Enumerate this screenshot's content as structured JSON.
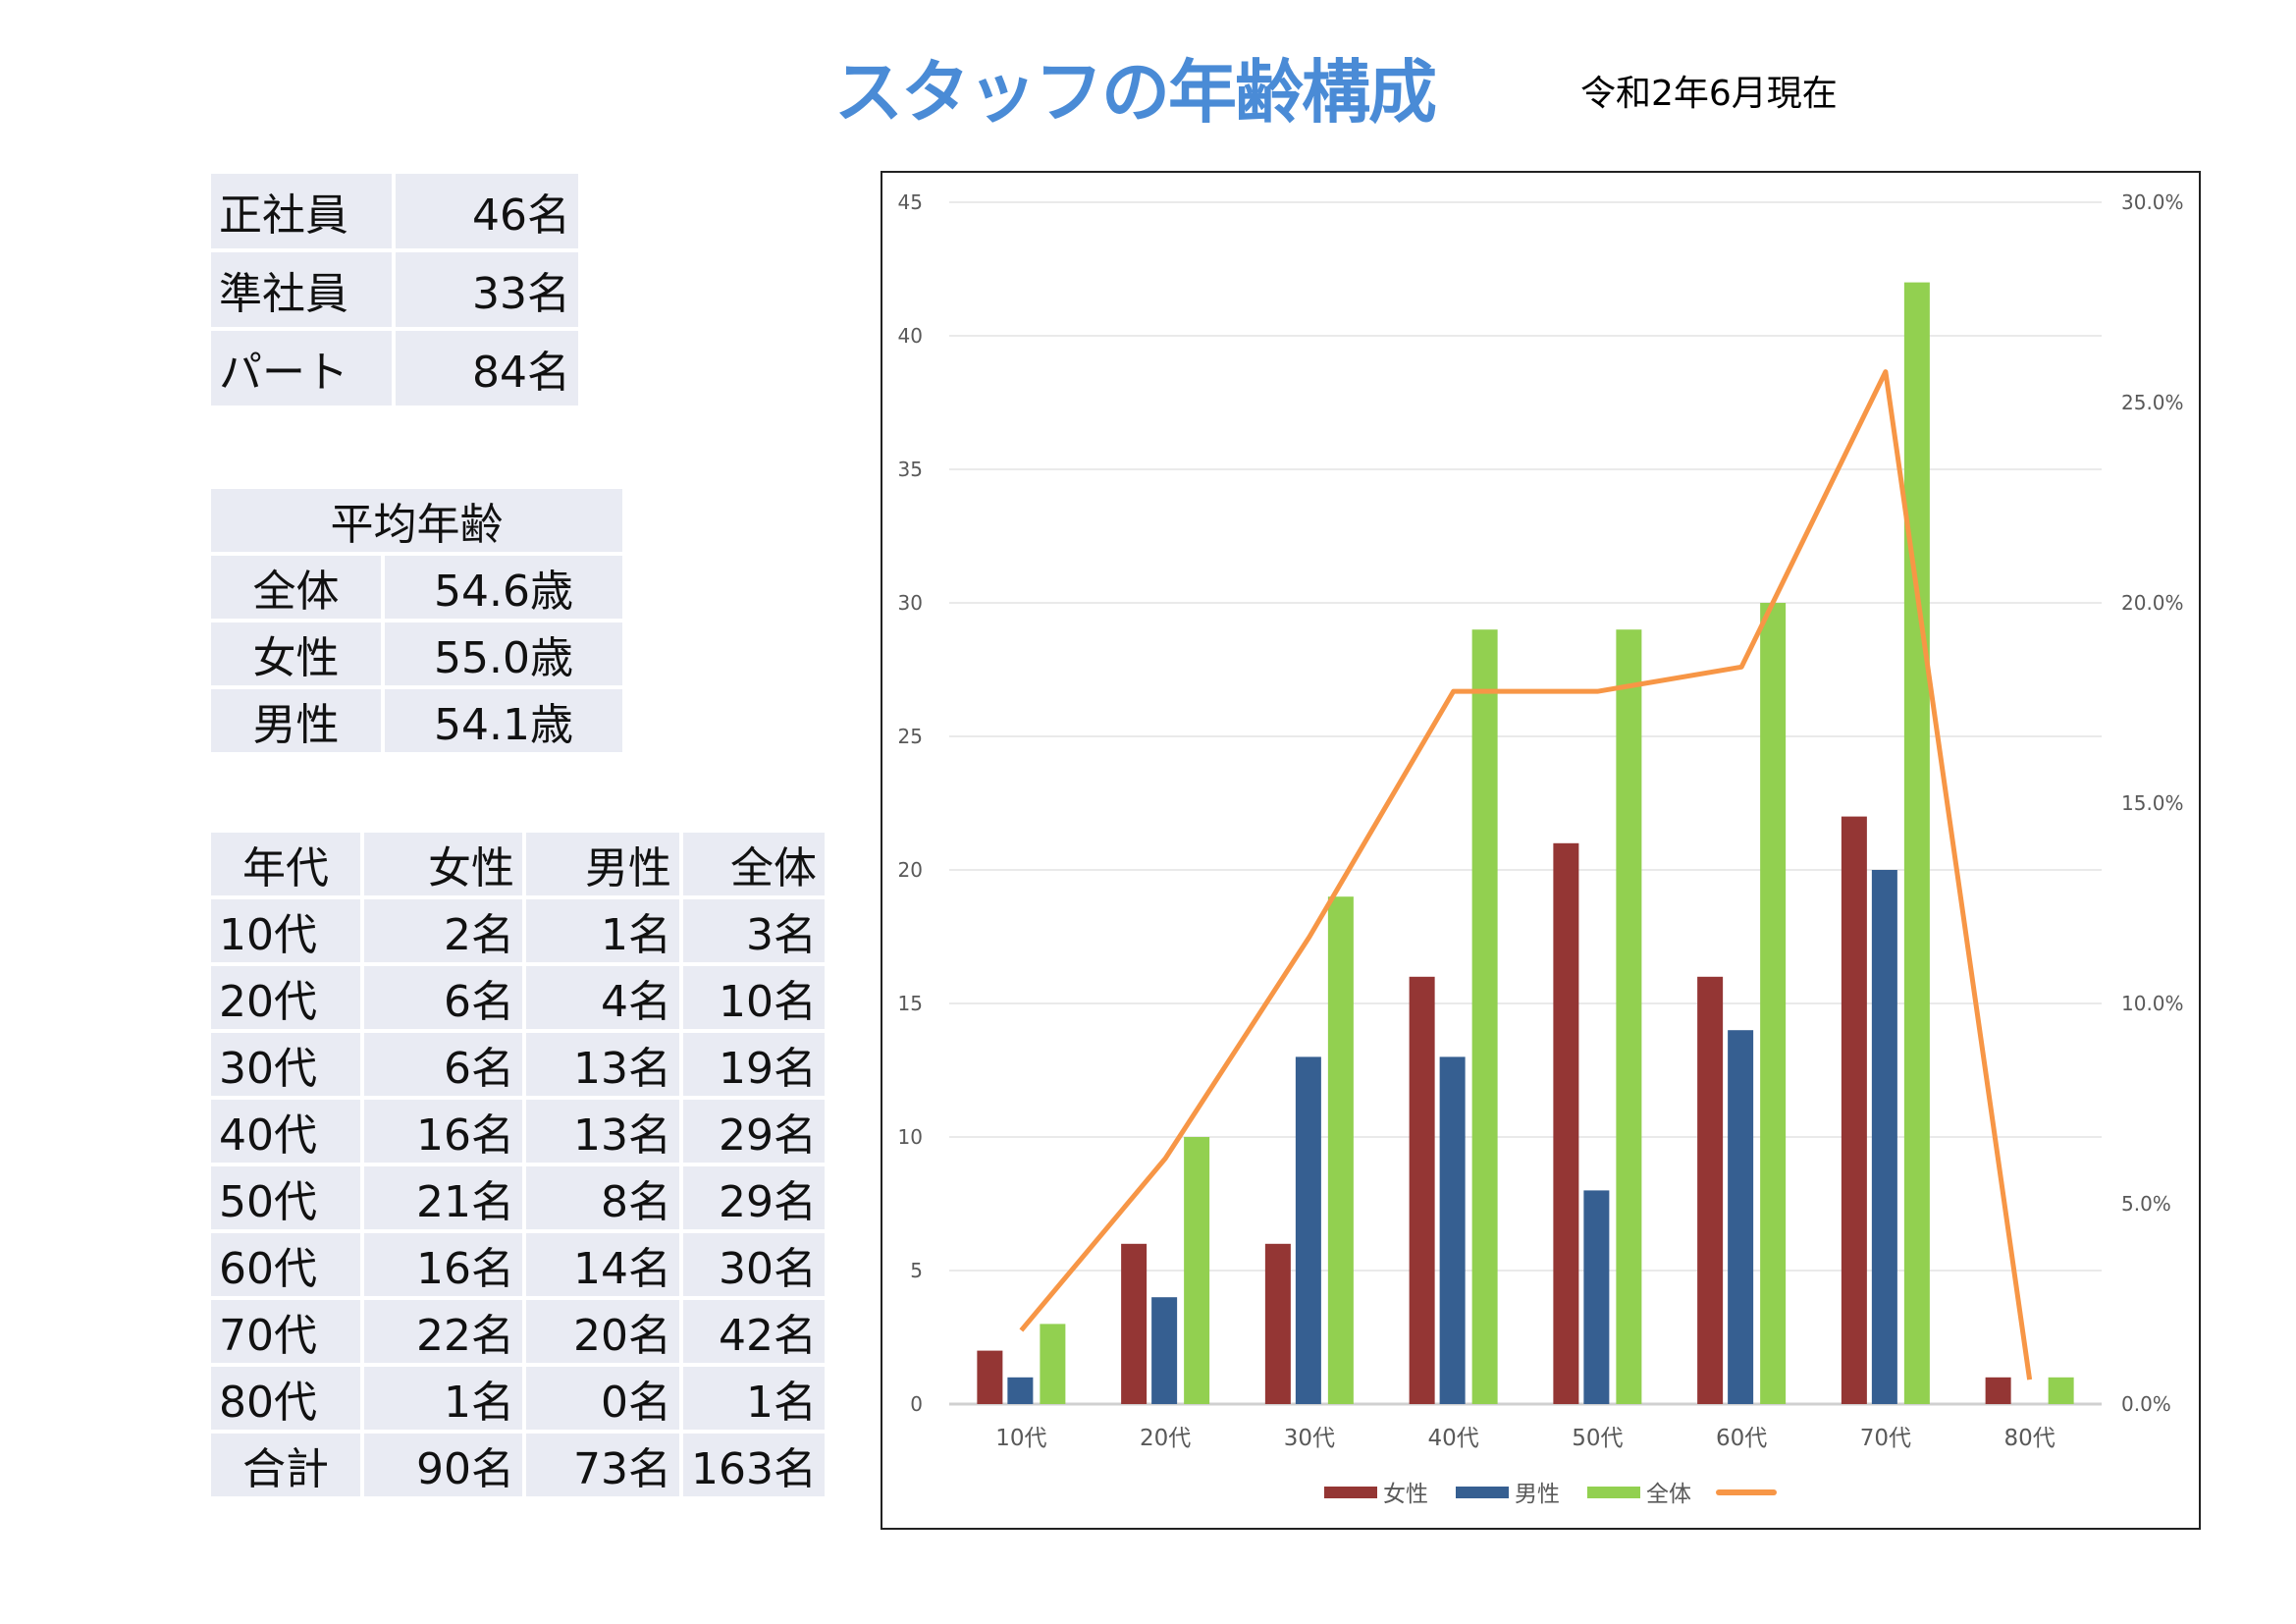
{
  "header": {
    "title": "スタッフの年齢構成",
    "date": "令和2年6月現在"
  },
  "employment": [
    {
      "label": "正社員",
      "value": "46名"
    },
    {
      "label": "準社員",
      "value": "33名"
    },
    {
      "label": "パート",
      "value": "84名"
    }
  ],
  "average_age": {
    "title": "平均年齢",
    "rows": [
      {
        "label": "全体",
        "value": "54.6歳"
      },
      {
        "label": "女性",
        "value": "55.0歳"
      },
      {
        "label": "男性",
        "value": "54.1歳"
      }
    ]
  },
  "age_table": {
    "headers": [
      "年代",
      "女性",
      "男性",
      "全体"
    ],
    "rows": [
      [
        "10代",
        "2名",
        "1名",
        "3名"
      ],
      [
        "20代",
        "6名",
        "4名",
        "10名"
      ],
      [
        "30代",
        "6名",
        "13名",
        "19名"
      ],
      [
        "40代",
        "16名",
        "13名",
        "29名"
      ],
      [
        "50代",
        "21名",
        "8名",
        "29名"
      ],
      [
        "60代",
        "16名",
        "14名",
        "30名"
      ],
      [
        "70代",
        "22名",
        "20名",
        "42名"
      ],
      [
        "80代",
        "1名",
        "0名",
        "1名"
      ]
    ],
    "total": [
      "合計",
      "90名",
      "73名",
      "163名"
    ]
  },
  "chart_data": {
    "type": "bar",
    "categories": [
      "10代",
      "20代",
      "30代",
      "40代",
      "50代",
      "60代",
      "70代",
      "80代"
    ],
    "series": [
      {
        "name": "女性",
        "type": "bar",
        "axis": "left",
        "color": "#943634",
        "values": [
          2,
          6,
          6,
          16,
          21,
          16,
          22,
          1
        ]
      },
      {
        "name": "男性",
        "type": "bar",
        "axis": "left",
        "color": "#365f91",
        "values": [
          1,
          4,
          13,
          13,
          8,
          14,
          20,
          0
        ]
      },
      {
        "name": "全体",
        "type": "bar",
        "axis": "left",
        "color": "#92d050",
        "values": [
          3,
          10,
          19,
          29,
          29,
          30,
          42,
          1
        ]
      },
      {
        "name": "",
        "type": "line",
        "axis": "right",
        "color": "#f79646",
        "values": [
          1.84,
          6.13,
          11.66,
          17.79,
          17.79,
          18.4,
          25.77,
          0.61
        ]
      }
    ],
    "ylim": [
      0,
      45
    ],
    "yticks": [
      "0",
      "5",
      "10",
      "15",
      "20",
      "25",
      "30",
      "35",
      "40",
      "45"
    ],
    "y2lim": [
      0,
      30
    ],
    "y2ticks": [
      "0.0%",
      "5.0%",
      "10.0%",
      "15.0%",
      "20.0%",
      "25.0%",
      "30.0%"
    ],
    "grid": true,
    "legend": "bottom"
  }
}
